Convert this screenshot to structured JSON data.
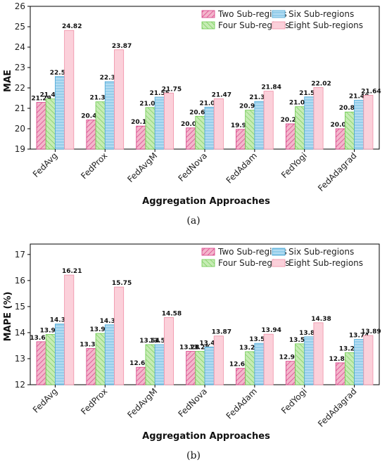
{
  "chart_data": [
    {
      "type": "bar",
      "caption": "(a)",
      "xlabel": "Aggregation Approaches",
      "ylabel": "MAE",
      "ylim": [
        19,
        26
      ],
      "yticks": [
        19,
        20,
        21,
        22,
        23,
        24,
        25,
        26
      ],
      "grid": false,
      "legend_position": "top-right",
      "categories": [
        "FedAvg",
        "FedProx",
        "FedAvgM",
        "FedNova",
        "FedAdam",
        "FedYogi",
        "FedAdagrad"
      ],
      "series": [
        {
          "name": "Two Sub-regions",
          "values": [
            21.29,
            20.43,
            20.13,
            20.04,
            19.97,
            20.24,
            20.0
          ]
        },
        {
          "name": "Four Sub-regions",
          "values": [
            21.46,
            21.32,
            21.04,
            20.61,
            20.91,
            21.08,
            20.82
          ]
        },
        {
          "name": "Six Sub-regions",
          "values": [
            22.56,
            22.31,
            21.55,
            21.06,
            21.34,
            21.56,
            21.4
          ]
        },
        {
          "name": "Eight Sub-regions",
          "values": [
            24.82,
            23.87,
            21.75,
            21.47,
            21.84,
            22.02,
            21.64
          ]
        }
      ]
    },
    {
      "type": "bar",
      "caption": "(b)",
      "xlabel": "Aggregation Approaches",
      "ylabel": "MAPE (%)",
      "ylim": [
        12,
        17.4
      ],
      "yticks": [
        12,
        13,
        14,
        15,
        16,
        17
      ],
      "grid": false,
      "legend_position": "top-right",
      "categories": [
        "FedAvg",
        "FedProx",
        "FedAvgM",
        "FedNova",
        "FedAdam",
        "FedYogi",
        "FedAdagrad"
      ],
      "series": [
        {
          "name": "Two Sub-regions",
          "values": [
            13.65,
            13.39,
            12.67,
            13.28,
            12.63,
            12.9,
            12.84
          ]
        },
        {
          "name": "Four Sub-regions",
          "values": [
            13.93,
            13.97,
            13.54,
            13.28,
            13.27,
            13.57,
            13.23
          ]
        },
        {
          "name": "Six Sub-regions",
          "values": [
            14.33,
            14.3,
            13.54,
            13.45,
            13.59,
            13.84,
            13.74
          ]
        },
        {
          "name": "Eight Sub-regions",
          "values": [
            16.21,
            15.75,
            14.58,
            13.87,
            13.94,
            14.38,
            13.89
          ]
        }
      ]
    }
  ],
  "colors": {
    "series_fill": [
      "#f3b6cc",
      "#c6ecb4",
      "#b3dcf2",
      "#fbd0da"
    ],
    "series_stroke": [
      "#d83c85",
      "#6cc94e",
      "#4aa8d6",
      "#f08fa6"
    ],
    "hatch": [
      "diagonal",
      "diagonal-reverse",
      "horizontal",
      "none"
    ]
  }
}
